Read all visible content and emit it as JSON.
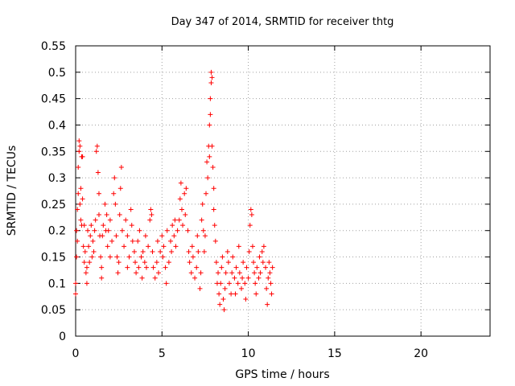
{
  "chart_data": {
    "type": "scatter",
    "title": "Day 347 of 2014, SRMTID for receiver thtg",
    "xlabel": "GPS time / hours",
    "ylabel": "SRMTID / TECUs",
    "xlim": [
      0,
      24
    ],
    "ylim": [
      0,
      0.55
    ],
    "xticks": [
      0,
      5,
      10,
      15,
      20
    ],
    "yticks": [
      0,
      0.05,
      0.1,
      0.15,
      0.2,
      0.25,
      0.3,
      0.35,
      0.4,
      0.45,
      0.5,
      0.55
    ],
    "xtick_labels": [
      "0",
      "5",
      "10",
      "15",
      "20"
    ],
    "ytick_labels": [
      "0",
      "0.05",
      "0.1",
      "0.15",
      "0.2",
      "0.25",
      "0.3",
      "0.35",
      "0.4",
      "0.45",
      "0.5",
      "0.55"
    ],
    "grid": true,
    "marker": "+",
    "color": "#ff0000",
    "series": [
      {
        "points": [
          [
            0.0,
            0.08
          ],
          [
            0.0,
            0.1
          ],
          [
            0.05,
            0.15
          ],
          [
            0.05,
            0.2
          ],
          [
            0.1,
            0.18
          ],
          [
            0.1,
            0.24
          ],
          [
            0.15,
            0.27
          ],
          [
            0.15,
            0.32
          ],
          [
            0.2,
            0.37
          ],
          [
            0.2,
            0.35
          ],
          [
            0.25,
            0.36
          ],
          [
            0.25,
            0.25
          ],
          [
            0.3,
            0.22
          ],
          [
            0.3,
            0.28
          ],
          [
            0.35,
            0.21
          ],
          [
            0.35,
            0.34
          ],
          [
            0.4,
            0.34
          ],
          [
            0.4,
            0.26
          ],
          [
            0.45,
            0.17
          ],
          [
            0.5,
            0.14
          ],
          [
            0.5,
            0.21
          ],
          [
            0.55,
            0.16
          ],
          [
            0.6,
            0.12
          ],
          [
            0.65,
            0.1
          ],
          [
            0.65,
            0.13
          ],
          [
            0.7,
            0.2
          ],
          [
            0.75,
            0.17
          ],
          [
            0.8,
            0.14
          ],
          [
            0.85,
            0.19
          ],
          [
            0.9,
            0.21
          ],
          [
            0.95,
            0.15
          ],
          [
            1.0,
            0.18
          ],
          [
            1.05,
            0.16
          ],
          [
            1.1,
            0.2
          ],
          [
            1.15,
            0.22
          ],
          [
            1.2,
            0.35
          ],
          [
            1.25,
            0.36
          ],
          [
            1.3,
            0.31
          ],
          [
            1.35,
            0.27
          ],
          [
            1.35,
            0.23
          ],
          [
            1.4,
            0.19
          ],
          [
            1.45,
            0.15
          ],
          [
            1.5,
            0.11
          ],
          [
            1.5,
            0.13
          ],
          [
            1.55,
            0.19
          ],
          [
            1.6,
            0.21
          ],
          [
            1.7,
            0.25
          ],
          [
            1.75,
            0.2
          ],
          [
            1.8,
            0.23
          ],
          [
            1.85,
            0.17
          ],
          [
            1.9,
            0.2
          ],
          [
            2.0,
            0.15
          ],
          [
            2.0,
            0.22
          ],
          [
            2.1,
            0.18
          ],
          [
            2.2,
            0.27
          ],
          [
            2.25,
            0.3
          ],
          [
            2.3,
            0.25
          ],
          [
            2.35,
            0.19
          ],
          [
            2.4,
            0.15
          ],
          [
            2.45,
            0.12
          ],
          [
            2.5,
            0.14
          ],
          [
            2.55,
            0.23
          ],
          [
            2.6,
            0.28
          ],
          [
            2.65,
            0.32
          ],
          [
            2.7,
            0.2
          ],
          [
            2.8,
            0.17
          ],
          [
            2.9,
            0.22
          ],
          [
            3.0,
            0.19
          ],
          [
            3.0,
            0.13
          ],
          [
            3.1,
            0.15
          ],
          [
            3.2,
            0.24
          ],
          [
            3.25,
            0.21
          ],
          [
            3.3,
            0.18
          ],
          [
            3.4,
            0.16
          ],
          [
            3.45,
            0.14
          ],
          [
            3.5,
            0.12
          ],
          [
            3.6,
            0.18
          ],
          [
            3.65,
            0.13
          ],
          [
            3.7,
            0.2
          ],
          [
            3.8,
            0.15
          ],
          [
            3.85,
            0.11
          ],
          [
            3.9,
            0.16
          ],
          [
            4.0,
            0.14
          ],
          [
            4.05,
            0.19
          ],
          [
            4.1,
            0.13
          ],
          [
            4.2,
            0.17
          ],
          [
            4.3,
            0.22
          ],
          [
            4.35,
            0.24
          ],
          [
            4.4,
            0.23
          ],
          [
            4.45,
            0.16
          ],
          [
            4.5,
            0.13
          ],
          [
            4.6,
            0.11
          ],
          [
            4.7,
            0.14
          ],
          [
            4.75,
            0.18
          ],
          [
            4.8,
            0.12
          ],
          [
            4.9,
            0.16
          ],
          [
            5.0,
            0.19
          ],
          [
            5.05,
            0.15
          ],
          [
            5.1,
            0.17
          ],
          [
            5.2,
            0.13
          ],
          [
            5.25,
            0.1
          ],
          [
            5.3,
            0.2
          ],
          [
            5.4,
            0.14
          ],
          [
            5.5,
            0.18
          ],
          [
            5.55,
            0.16
          ],
          [
            5.6,
            0.21
          ],
          [
            5.7,
            0.19
          ],
          [
            5.75,
            0.22
          ],
          [
            5.8,
            0.17
          ],
          [
            5.9,
            0.2
          ],
          [
            6.0,
            0.22
          ],
          [
            6.05,
            0.26
          ],
          [
            6.1,
            0.29
          ],
          [
            6.15,
            0.24
          ],
          [
            6.2,
            0.21
          ],
          [
            6.3,
            0.27
          ],
          [
            6.35,
            0.23
          ],
          [
            6.4,
            0.28
          ],
          [
            6.5,
            0.2
          ],
          [
            6.55,
            0.16
          ],
          [
            6.6,
            0.14
          ],
          [
            6.7,
            0.12
          ],
          [
            6.75,
            0.17
          ],
          [
            6.8,
            0.15
          ],
          [
            6.9,
            0.11
          ],
          [
            7.0,
            0.13
          ],
          [
            7.05,
            0.19
          ],
          [
            7.1,
            0.16
          ],
          [
            7.2,
            0.09
          ],
          [
            7.25,
            0.12
          ],
          [
            7.3,
            0.22
          ],
          [
            7.35,
            0.25
          ],
          [
            7.4,
            0.2
          ],
          [
            7.45,
            0.16
          ],
          [
            7.5,
            0.19
          ],
          [
            7.55,
            0.27
          ],
          [
            7.6,
            0.33
          ],
          [
            7.65,
            0.3
          ],
          [
            7.7,
            0.36
          ],
          [
            7.75,
            0.34
          ],
          [
            7.75,
            0.4
          ],
          [
            7.8,
            0.42
          ],
          [
            7.8,
            0.45
          ],
          [
            7.85,
            0.48
          ],
          [
            7.85,
            0.5
          ],
          [
            7.9,
            0.49
          ],
          [
            7.9,
            0.36
          ],
          [
            7.95,
            0.32
          ],
          [
            8.0,
            0.28
          ],
          [
            8.0,
            0.24
          ],
          [
            8.05,
            0.21
          ],
          [
            8.1,
            0.18
          ],
          [
            8.15,
            0.14
          ],
          [
            8.2,
            0.1
          ],
          [
            8.25,
            0.12
          ],
          [
            8.3,
            0.08
          ],
          [
            8.35,
            0.06
          ],
          [
            8.4,
            0.1
          ],
          [
            8.45,
            0.13
          ],
          [
            8.5,
            0.15
          ],
          [
            8.55,
            0.07
          ],
          [
            8.6,
            0.05
          ],
          [
            8.65,
            0.09
          ],
          [
            8.7,
            0.12
          ],
          [
            8.8,
            0.16
          ],
          [
            8.85,
            0.14
          ],
          [
            8.9,
            0.1
          ],
          [
            9.0,
            0.08
          ],
          [
            9.05,
            0.12
          ],
          [
            9.1,
            0.15
          ],
          [
            9.2,
            0.11
          ],
          [
            9.25,
            0.08
          ],
          [
            9.3,
            0.13
          ],
          [
            9.4,
            0.1
          ],
          [
            9.45,
            0.17
          ],
          [
            9.5,
            0.12
          ],
          [
            9.6,
            0.09
          ],
          [
            9.65,
            0.11
          ],
          [
            9.7,
            0.14
          ],
          [
            9.8,
            0.1
          ],
          [
            9.85,
            0.07
          ],
          [
            9.9,
            0.13
          ],
          [
            10.0,
            0.11
          ],
          [
            10.05,
            0.16
          ],
          [
            10.1,
            0.21
          ],
          [
            10.15,
            0.24
          ],
          [
            10.2,
            0.23
          ],
          [
            10.25,
            0.17
          ],
          [
            10.3,
            0.14
          ],
          [
            10.35,
            0.12
          ],
          [
            10.4,
            0.1
          ],
          [
            10.45,
            0.08
          ],
          [
            10.5,
            0.13
          ],
          [
            10.6,
            0.11
          ],
          [
            10.65,
            0.15
          ],
          [
            10.7,
            0.12
          ],
          [
            10.8,
            0.16
          ],
          [
            10.85,
            0.14
          ],
          [
            10.9,
            0.17
          ],
          [
            11.0,
            0.13
          ],
          [
            11.05,
            0.09
          ],
          [
            11.1,
            0.06
          ],
          [
            11.15,
            0.11
          ],
          [
            11.2,
            0.14
          ],
          [
            11.25,
            0.12
          ],
          [
            11.3,
            0.1
          ],
          [
            11.35,
            0.08
          ],
          [
            11.4,
            0.13
          ]
        ]
      }
    ]
  }
}
